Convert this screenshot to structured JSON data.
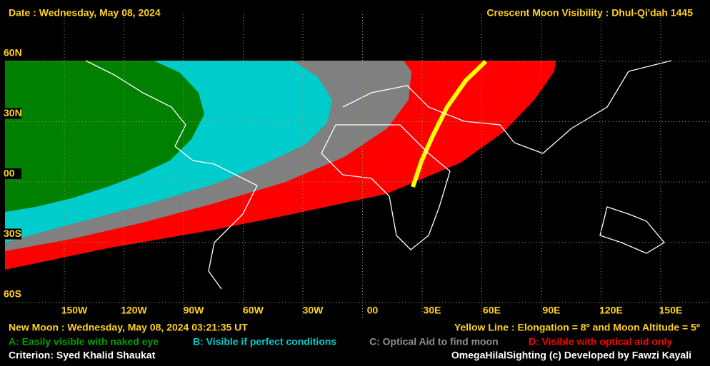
{
  "header": {
    "date": "Date : Wednesday, May 08, 2024",
    "title": "Crescent Moon Visibility : Dhul-Qi'dah  1445"
  },
  "map": {
    "lat_labels": [
      "60N",
      "30N",
      "00",
      "30S",
      "60S"
    ],
    "lon_labels": [
      "150W",
      "120W",
      "90W",
      "60W",
      "30W",
      "00",
      "30E",
      "60E",
      "90E",
      "120E",
      "150E"
    ]
  },
  "footer": {
    "new_moon": "New Moon : Wednesday, May 08, 2024  03:21:35  UT",
    "yellow_line": "Yellow Line : Elongation = 8º  and Moon Altitude = 5º",
    "legend": [
      "A: Easily visible with naked eye",
      "B: Visible if perfect conditions",
      "C: Optical Aid to find moon",
      "D: Visible with optical aid only"
    ],
    "criterion": "Criterion: Syed Khalid Shaukat",
    "credit": "OmegaHilalSighting  (c)  Developed by Fawzi Kayali"
  }
}
